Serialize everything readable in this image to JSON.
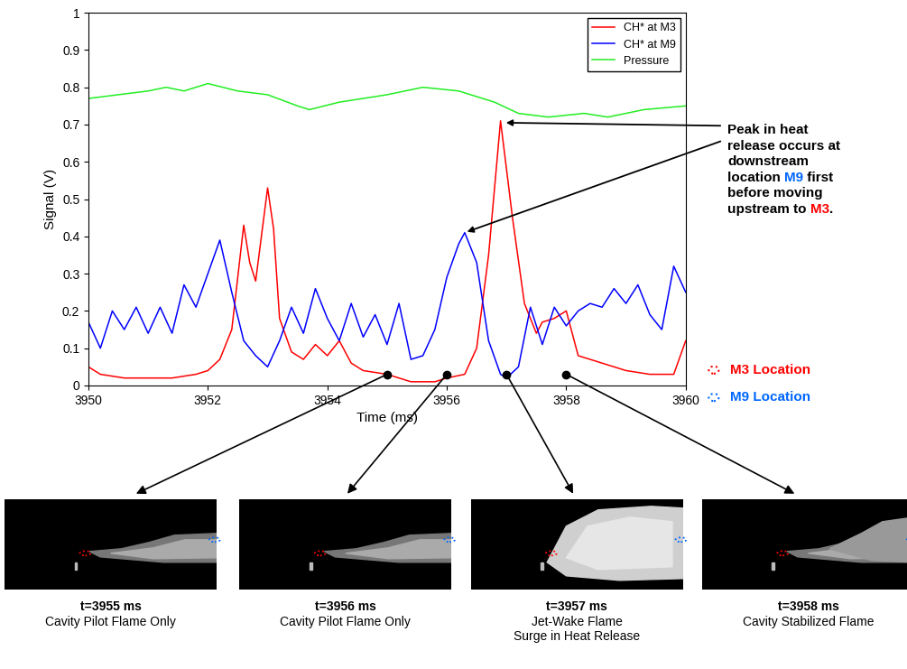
{
  "chart_data": {
    "type": "line",
    "xlabel": "Time (ms)",
    "ylabel": "Signal (V)",
    "xlim": [
      3950,
      3960
    ],
    "xticks": [
      3950,
      3952,
      3954,
      3956,
      3958,
      3960
    ],
    "ylim": [
      0,
      1
    ],
    "yticks": [
      0,
      0.1,
      0.2,
      0.3,
      0.4,
      0.5,
      0.6,
      0.7,
      0.8,
      0.9,
      1
    ],
    "legend": "upper right",
    "series": [
      {
        "name": "CH* at M3",
        "color": "#ff0000",
        "x": [
          3950,
          3950.2,
          3950.6,
          3951,
          3951.4,
          3951.8,
          3952.0,
          3952.2,
          3952.4,
          3952.6,
          3952.7,
          3952.8,
          3953.0,
          3953.1,
          3953.2,
          3953.4,
          3953.6,
          3953.8,
          3954.0,
          3954.2,
          3954.4,
          3954.6,
          3955.0,
          3955.4,
          3955.8,
          3956.0,
          3956.3,
          3956.5,
          3956.7,
          3956.9,
          3957.1,
          3957.3,
          3957.5,
          3957.6,
          3957.8,
          3958.0,
          3958.2,
          3958.6,
          3959.0,
          3959.4,
          3959.8,
          3960
        ],
        "values": [
          0.05,
          0.03,
          0.02,
          0.02,
          0.02,
          0.03,
          0.04,
          0.07,
          0.15,
          0.43,
          0.33,
          0.28,
          0.53,
          0.42,
          0.18,
          0.09,
          0.07,
          0.11,
          0.08,
          0.12,
          0.06,
          0.04,
          0.03,
          0.01,
          0.01,
          0.02,
          0.03,
          0.1,
          0.35,
          0.71,
          0.45,
          0.22,
          0.14,
          0.17,
          0.18,
          0.2,
          0.08,
          0.06,
          0.04,
          0.03,
          0.03,
          0.12
        ]
      },
      {
        "name": "CH* at M9",
        "color": "#0000ff",
        "x": [
          3950,
          3950.2,
          3950.4,
          3950.6,
          3950.8,
          3951.0,
          3951.2,
          3951.4,
          3951.6,
          3951.8,
          3952.0,
          3952.2,
          3952.4,
          3952.6,
          3952.8,
          3953.0,
          3953.2,
          3953.4,
          3953.6,
          3953.8,
          3954.0,
          3954.2,
          3954.4,
          3954.6,
          3954.8,
          3955.0,
          3955.2,
          3955.4,
          3955.6,
          3955.8,
          3956.0,
          3956.2,
          3956.3,
          3956.5,
          3956.7,
          3956.9,
          3957.0,
          3957.2,
          3957.4,
          3957.6,
          3957.8,
          3958.0,
          3958.2,
          3958.4,
          3958.6,
          3958.8,
          3959.0,
          3959.2,
          3959.4,
          3959.6,
          3959.8,
          3960
        ],
        "values": [
          0.17,
          0.1,
          0.2,
          0.15,
          0.21,
          0.14,
          0.21,
          0.14,
          0.27,
          0.21,
          0.3,
          0.39,
          0.25,
          0.12,
          0.08,
          0.05,
          0.12,
          0.21,
          0.14,
          0.26,
          0.18,
          0.12,
          0.22,
          0.13,
          0.19,
          0.11,
          0.22,
          0.07,
          0.08,
          0.15,
          0.29,
          0.38,
          0.41,
          0.33,
          0.12,
          0.03,
          0.02,
          0.05,
          0.21,
          0.11,
          0.21,
          0.16,
          0.2,
          0.22,
          0.21,
          0.26,
          0.22,
          0.27,
          0.19,
          0.15,
          0.32,
          0.25
        ]
      },
      {
        "name": "Pressure",
        "color": "#22ee22",
        "x": [
          3950,
          3950.5,
          3951,
          3951.3,
          3951.6,
          3952,
          3952.5,
          3953,
          3953.5,
          3953.7,
          3954.2,
          3955,
          3955.6,
          3956.2,
          3956.8,
          3957.2,
          3957.7,
          3958.3,
          3958.7,
          3959.3,
          3960
        ],
        "values": [
          0.77,
          0.78,
          0.79,
          0.8,
          0.79,
          0.81,
          0.79,
          0.78,
          0.75,
          0.74,
          0.76,
          0.78,
          0.8,
          0.79,
          0.76,
          0.73,
          0.72,
          0.73,
          0.72,
          0.74,
          0.75
        ]
      }
    ]
  },
  "annotation": {
    "lines": [
      "Peak in heat",
      "release occurs at",
      "downstream",
      "location M9 first",
      "before moving",
      "upstream to M3."
    ],
    "highlights": [
      {
        "text": "M9",
        "color": "#0066ff"
      },
      {
        "text": "M3",
        "color": "#ff0000"
      }
    ],
    "targets": [
      {
        "x": 3956.95,
        "y": 0.705
      },
      {
        "x": 3956.3,
        "y": 0.41
      }
    ]
  },
  "location_key": [
    {
      "label": "M3 Location",
      "color": "#ff0000"
    },
    {
      "label": "M9 Location",
      "color": "#0066ff"
    }
  ],
  "snapshots": [
    {
      "time": 3955,
      "marker_y": 0.03,
      "label": "t=3955 ms",
      "caption": [
        "Cavity Pilot Flame Only"
      ]
    },
    {
      "time": 3956,
      "marker_y": 0.03,
      "label": "t=3956 ms",
      "caption": [
        "Cavity Pilot Flame Only"
      ]
    },
    {
      "time": 3957,
      "marker_y": 0.03,
      "label": "t=3957 ms",
      "caption": [
        "Jet-Wake Flame",
        "Surge in Heat Release"
      ]
    },
    {
      "time": 3958,
      "marker_y": 0.03,
      "label": "t=3958 ms",
      "caption": [
        "Cavity Stabilized Flame"
      ]
    }
  ]
}
